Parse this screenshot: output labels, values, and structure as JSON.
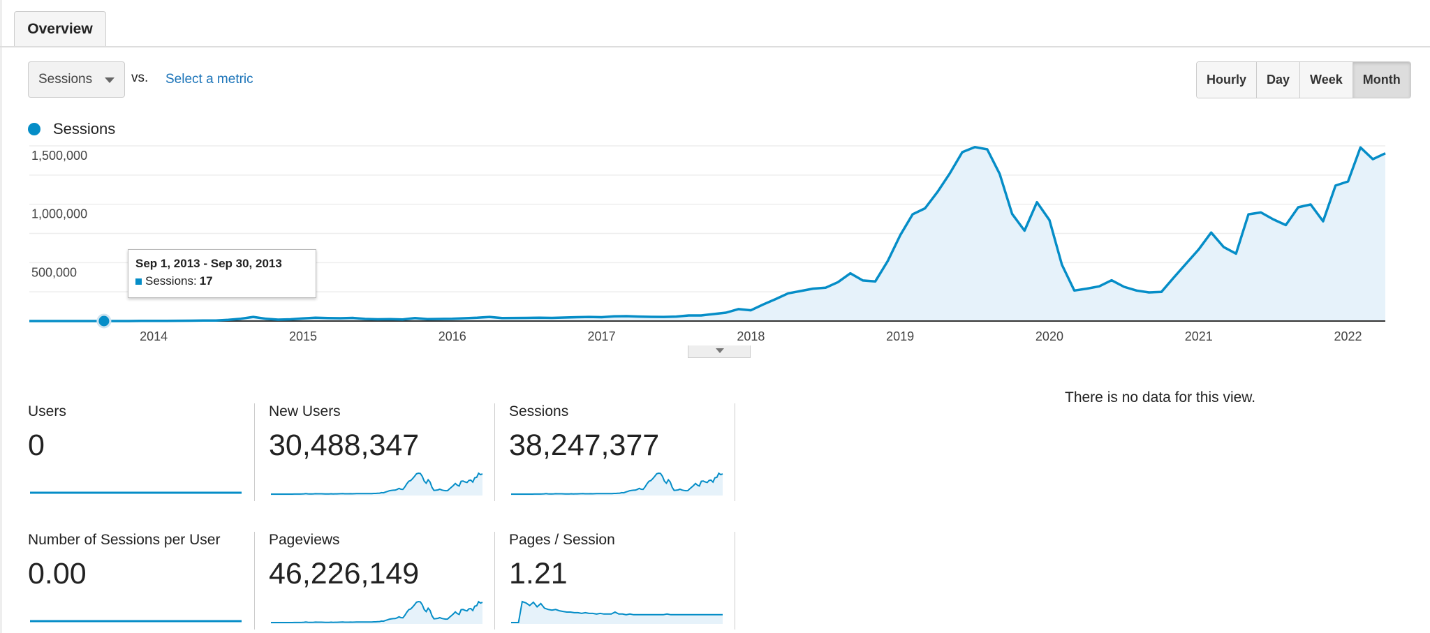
{
  "tab": {
    "label": "Overview"
  },
  "toolbar": {
    "metric_selected": "Sessions",
    "vs_label": "vs.",
    "select_metric_link": "Select a metric",
    "granularity": [
      "Hourly",
      "Day",
      "Week",
      "Month"
    ],
    "granularity_active": "Month"
  },
  "legend": {
    "label": "Sessions",
    "color": "#058dc7"
  },
  "tooltip": {
    "date_range": "Sep 1, 2013 - Sep 30, 2013",
    "series": "Sessions:",
    "value": "17"
  },
  "no_data": "There is no data for this view.",
  "metrics": [
    {
      "label": "Users",
      "value": "0",
      "spark": "flat"
    },
    {
      "label": "New Users",
      "value": "30,488,347",
      "spark": "sessions"
    },
    {
      "label": "Sessions",
      "value": "38,247,377",
      "spark": "sessions"
    },
    {
      "label": "Number of Sessions per User",
      "value": "0.00",
      "spark": "flat"
    },
    {
      "label": "Pageviews",
      "value": "46,226,149",
      "spark": "sessions"
    },
    {
      "label": "Pages / Session",
      "value": "1.21",
      "spark": "pps"
    }
  ],
  "chart_data": {
    "type": "area",
    "title": "Sessions",
    "x_start": "2013-03",
    "x_interval": "month",
    "x_ticks": [
      "2014",
      "2015",
      "2016",
      "2017",
      "2018",
      "2019",
      "2020",
      "2021",
      "2022"
    ],
    "y_ticks": [
      "500,000",
      "1,000,000",
      "1,500,000"
    ],
    "ylim": [
      0,
      1500000
    ],
    "grid": true,
    "highlight": {
      "month": "2013-09",
      "value": 17
    },
    "values": [
      0,
      0,
      0,
      5,
      10,
      17,
      20,
      30,
      40,
      1000,
      1500,
      2000,
      2500,
      3000,
      4000,
      5000,
      10000,
      20000,
      35000,
      20000,
      12000,
      15000,
      22000,
      28000,
      25000,
      24000,
      27000,
      18000,
      15000,
      16000,
      14000,
      25000,
      17000,
      18000,
      20000,
      24000,
      28000,
      35000,
      25000,
      26000,
      27000,
      28000,
      27000,
      30000,
      33000,
      35000,
      33000,
      40000,
      42000,
      38000,
      36000,
      35000,
      38000,
      48000,
      48000,
      60000,
      72000,
      102000,
      92000,
      142000,
      188000,
      237000,
      257000,
      277000,
      285000,
      333000,
      409000,
      347000,
      339000,
      513000,
      734000,
      914000,
      965000,
      1105000,
      1265000,
      1446000,
      1490000,
      1470000,
      1260000,
      918000,
      774000,
      1018000,
      864000,
      483000,
      261000,
      277000,
      297000,
      349000,
      293000,
      261000,
      245000,
      249000,
      373000,
      493000,
      614000,
      758000,
      634000,
      577000,
      914000,
      930000,
      870000,
      822000,
      974000,
      998000,
      854000,
      1160000,
      1195000,
      1486000,
      1386000,
      1436000
    ],
    "pages_per_session_spark": [
      0,
      0,
      0,
      3.2,
      3.0,
      2.6,
      3.1,
      2.4,
      2.9,
      2.2,
      2.0,
      1.9,
      2.0,
      1.8,
      1.7,
      1.6,
      1.6,
      1.5,
      1.5,
      1.4,
      1.5,
      1.4,
      1.4,
      1.3,
      1.4,
      1.3,
      1.3,
      1.3,
      1.6,
      1.3,
      1.3,
      1.2,
      1.3,
      1.2,
      1.2,
      1.2,
      1.2,
      1.2,
      1.2,
      1.2,
      1.2,
      1.2,
      1.3,
      1.2,
      1.2,
      1.2,
      1.2,
      1.2,
      1.2,
      1.2,
      1.2,
      1.2,
      1.2,
      1.2,
      1.2,
      1.2,
      1.2,
      1.2
    ]
  }
}
